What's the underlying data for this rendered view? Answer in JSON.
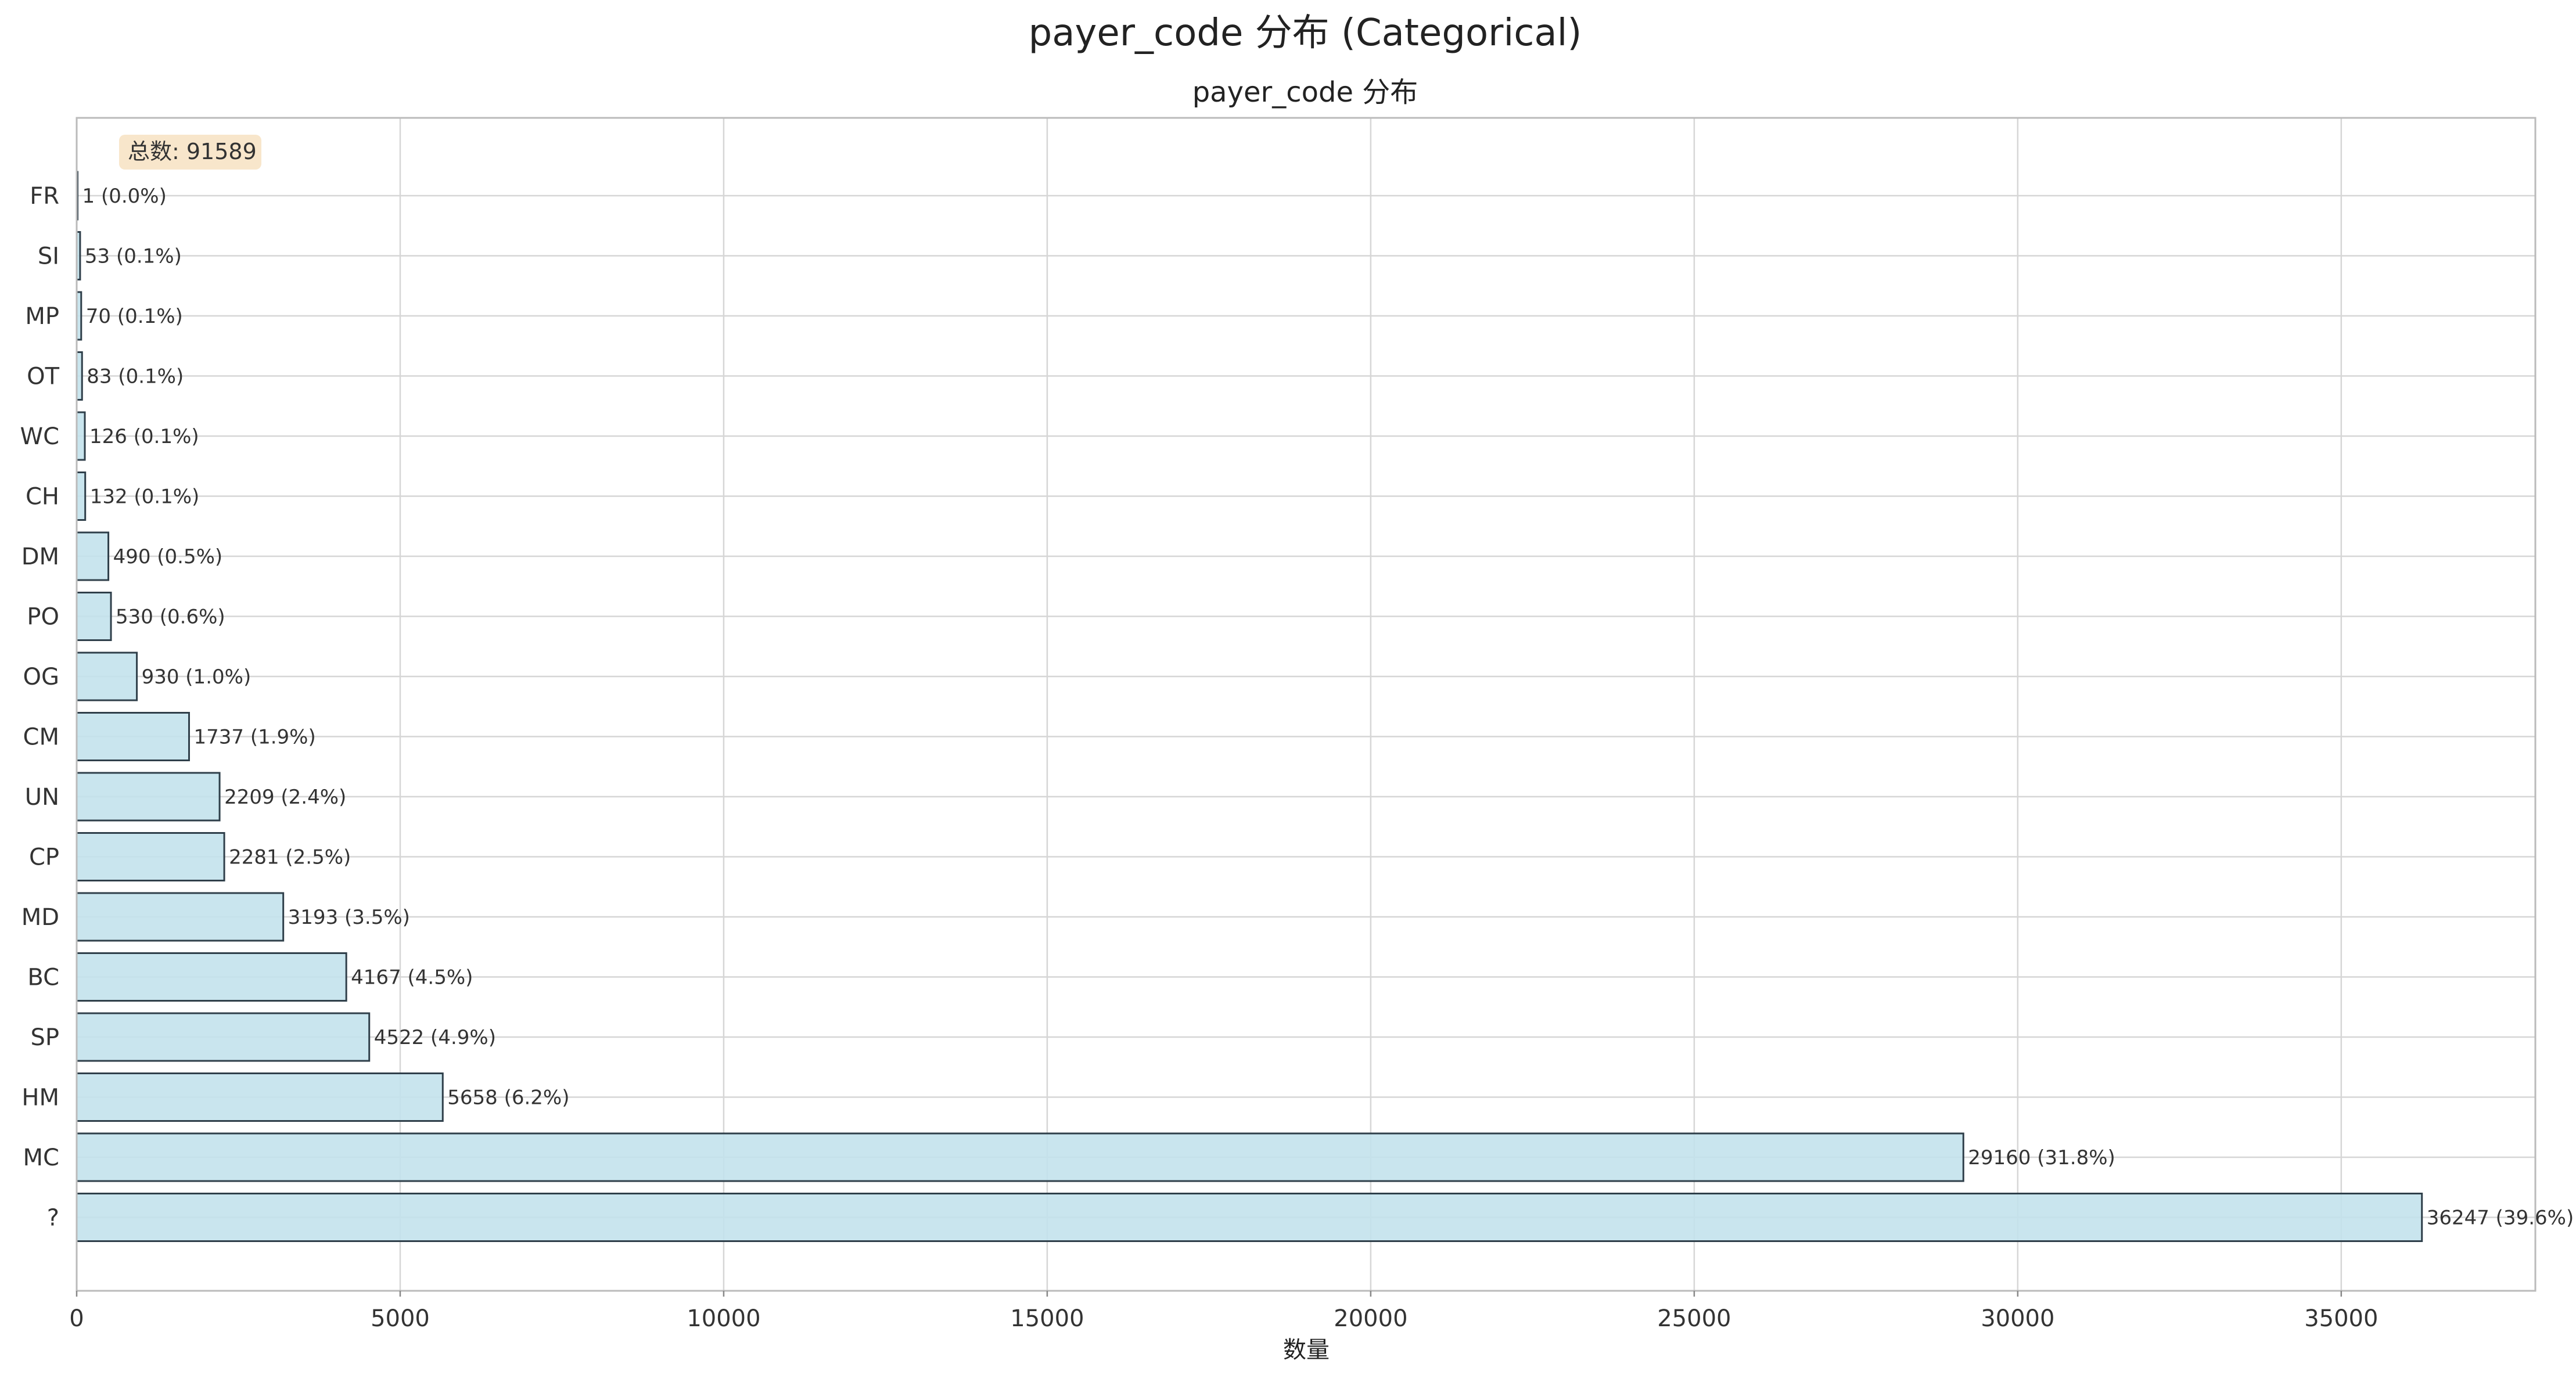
{
  "chart_data": {
    "type": "bar",
    "orientation": "horizontal",
    "suptitle": "payer_code 分布 (Categorical)",
    "title": "payer_code 分布",
    "xlabel": "数量",
    "ylabel": "",
    "xlim": [
      0,
      38000
    ],
    "xticks": [
      0,
      5000,
      10000,
      15000,
      20000,
      25000,
      30000,
      35000
    ],
    "grid": true,
    "total_label": "总数: 91589",
    "categories": [
      "FR",
      "SI",
      "MP",
      "OT",
      "WC",
      "CH",
      "DM",
      "PO",
      "OG",
      "CM",
      "UN",
      "CP",
      "MD",
      "BC",
      "SP",
      "HM",
      "MC",
      "?"
    ],
    "values": [
      1,
      53,
      70,
      83,
      126,
      132,
      490,
      530,
      930,
      1737,
      2209,
      2281,
      3193,
      4167,
      4522,
      5658,
      29160,
      36247
    ],
    "bar_labels": [
      "1 (0.0%)",
      "53 (0.1%)",
      "70 (0.1%)",
      "83 (0.1%)",
      "126 (0.1%)",
      "132 (0.1%)",
      "490 (0.5%)",
      "530 (0.6%)",
      "930 (1.0%)",
      "1737 (1.9%)",
      "2209 (2.4%)",
      "2281 (2.5%)",
      "3193 (3.5%)",
      "4167 (4.5%)",
      "4522 (4.9%)",
      "5658 (6.2%)",
      "29160 (31.8%)",
      "36247 (39.6%)"
    ],
    "bar_color": "#c3e2ec",
    "bar_edge_color": "#2f3f4a",
    "total_box_color": "#f7e2c2"
  }
}
